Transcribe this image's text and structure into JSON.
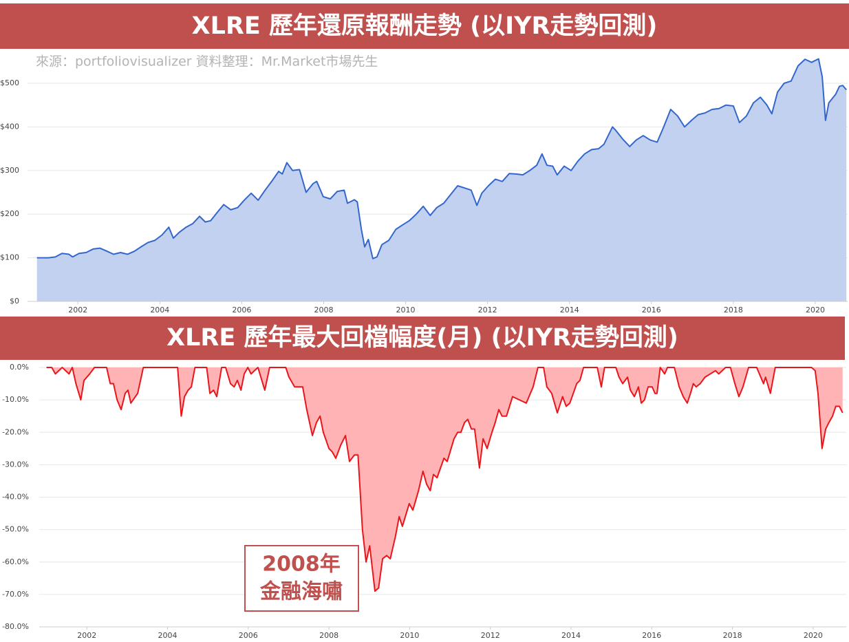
{
  "chart_data": [
    {
      "type": "area",
      "title": "XLRE 歷年還原報酬走勢 (以IYR走勢回測)",
      "subtitle": "來源：portfoliovisualizer 資料整理：Mr.Market市場先生",
      "color": "#3366cc",
      "fill_color": "#c2d1f0",
      "grid": true,
      "xlim": [
        2000.77,
        2020.79
      ],
      "xticks": [
        2002,
        2004,
        2006,
        2008,
        2010,
        2012,
        2014,
        2016,
        2018,
        2020
      ],
      "ylim": [
        0,
        575
      ],
      "yticks": [
        {
          "value": 0,
          "label": "$0"
        },
        {
          "value": 100,
          "label": "$100"
        },
        {
          "value": 200,
          "label": "$200"
        },
        {
          "value": 300,
          "label": "$300"
        },
        {
          "value": 400,
          "label": "$400"
        },
        {
          "value": 500,
          "label": "$500"
        }
      ],
      "x": [
        2001.0,
        2001.28,
        2001.45,
        2001.61,
        2001.78,
        2001.87,
        2002.03,
        2002.2,
        2002.37,
        2002.54,
        2002.71,
        2002.87,
        2003.04,
        2003.21,
        2003.38,
        2003.54,
        2003.71,
        2003.88,
        2004.05,
        2004.22,
        2004.33,
        2004.47,
        2004.64,
        2004.8,
        2004.97,
        2005.11,
        2005.24,
        2005.41,
        2005.56,
        2005.73,
        2005.9,
        2006.06,
        2006.23,
        2006.4,
        2006.57,
        2006.73,
        2006.9,
        2006.99,
        2007.1,
        2007.24,
        2007.41,
        2007.57,
        2007.74,
        2007.83,
        2007.99,
        2008.16,
        2008.33,
        2008.5,
        2008.58,
        2008.75,
        2008.82,
        2008.92,
        2009.0,
        2009.09,
        2009.2,
        2009.3,
        2009.42,
        2009.59,
        2009.76,
        2009.92,
        2010.09,
        2010.26,
        2010.43,
        2010.6,
        2010.76,
        2010.93,
        2011.1,
        2011.27,
        2011.44,
        2011.6,
        2011.74,
        2011.86,
        2012.02,
        2012.19,
        2012.36,
        2012.53,
        2012.7,
        2012.86,
        2013.03,
        2013.2,
        2013.33,
        2013.45,
        2013.59,
        2013.7,
        2013.87,
        2014.04,
        2014.21,
        2014.37,
        2014.54,
        2014.71,
        2014.84,
        2015.05,
        2015.13,
        2015.3,
        2015.47,
        2015.63,
        2015.8,
        2015.97,
        2016.14,
        2016.3,
        2016.47,
        2016.64,
        2016.81,
        2016.98,
        2017.14,
        2017.31,
        2017.48,
        2017.65,
        2017.82,
        2018.0,
        2018.15,
        2018.32,
        2018.49,
        2018.66,
        2018.82,
        2018.94,
        2019.08,
        2019.24,
        2019.41,
        2019.58,
        2019.75,
        2019.91,
        2020.08,
        2020.17,
        2020.25,
        2020.33,
        2020.5,
        2020.59,
        2020.67,
        2020.76
      ],
      "values": [
        100,
        100,
        102,
        110,
        108,
        102,
        110,
        112,
        120,
        122,
        115,
        108,
        112,
        108,
        115,
        125,
        135,
        140,
        152,
        170,
        145,
        158,
        170,
        178,
        195,
        182,
        185,
        205,
        222,
        210,
        215,
        232,
        248,
        232,
        255,
        275,
        298,
        292,
        318,
        300,
        302,
        250,
        270,
        275,
        240,
        235,
        252,
        255,
        225,
        233,
        228,
        165,
        125,
        142,
        98,
        102,
        130,
        140,
        165,
        175,
        185,
        200,
        218,
        197,
        215,
        225,
        245,
        265,
        260,
        255,
        220,
        248,
        265,
        280,
        275,
        293,
        292,
        290,
        300,
        312,
        338,
        312,
        310,
        290,
        310,
        300,
        322,
        338,
        348,
        350,
        360,
        400,
        392,
        372,
        355,
        370,
        380,
        370,
        365,
        400,
        440,
        425,
        400,
        415,
        428,
        432,
        440,
        442,
        450,
        448,
        410,
        425,
        455,
        468,
        450,
        430,
        480,
        500,
        505,
        540,
        555,
        548,
        556,
        515,
        415,
        455,
        475,
        493,
        495,
        485
      ]
    },
    {
      "type": "area",
      "title": "XLRE 歷年最大回檔幅度(月) (以IYR走勢回測)",
      "annotation": [
        "2008年",
        "金融海嘯"
      ],
      "color": "#e8161b",
      "fill_color": "#ffb3b5",
      "grid": true,
      "xlim": [
        2000.82,
        2020.82
      ],
      "xticks": [
        2002,
        2004,
        2006,
        2008,
        2010,
        2012,
        2014,
        2016,
        2018,
        2020
      ],
      "ylim": [
        -80,
        0
      ],
      "yticks": [
        {
          "value": 0,
          "label": "0.0%"
        },
        {
          "value": -10,
          "label": "-10.0%"
        },
        {
          "value": -20,
          "label": "-20.0%"
        },
        {
          "value": -30,
          "label": "-30.0%"
        },
        {
          "value": -40,
          "label": "-40.0%"
        },
        {
          "value": -50,
          "label": "-50.0%"
        },
        {
          "value": -60,
          "label": "-60.0%"
        },
        {
          "value": -70,
          "label": "-70.0%"
        },
        {
          "value": -80,
          "label": "-80.0%"
        }
      ],
      "x": [
        2001.0,
        2001.13,
        2001.22,
        2001.39,
        2001.56,
        2001.64,
        2001.73,
        2001.85,
        2001.93,
        2002.07,
        2002.19,
        2002.49,
        2002.58,
        2002.66,
        2002.75,
        2002.85,
        2002.95,
        2003.02,
        2003.09,
        2003.26,
        2003.4,
        2004.25,
        2004.34,
        2004.42,
        2004.51,
        2004.59,
        2004.68,
        2004.97,
        2005.05,
        2005.14,
        2005.22,
        2005.34,
        2005.44,
        2005.56,
        2005.65,
        2005.73,
        2005.82,
        2005.9,
        2005.99,
        2006.07,
        2006.24,
        2006.41,
        2006.53,
        2006.93,
        2007.01,
        2007.15,
        2007.35,
        2007.45,
        2007.59,
        2007.69,
        2007.78,
        2007.86,
        2008.0,
        2008.08,
        2008.17,
        2008.29,
        2008.41,
        2008.51,
        2008.63,
        2008.72,
        2008.83,
        2008.92,
        2009.01,
        2009.14,
        2009.23,
        2009.33,
        2009.43,
        2009.52,
        2009.65,
        2009.74,
        2009.82,
        2009.99,
        2010.08,
        2010.22,
        2010.33,
        2010.42,
        2010.51,
        2010.59,
        2010.68,
        2010.85,
        2010.93,
        2011.1,
        2011.19,
        2011.27,
        2011.36,
        2011.44,
        2011.53,
        2011.61,
        2011.73,
        2011.82,
        2011.92,
        2012.04,
        2012.12,
        2012.21,
        2012.29,
        2012.4,
        2012.55,
        2012.72,
        2012.89,
        2013.06,
        2013.18,
        2013.32,
        2013.4,
        2013.52,
        2013.66,
        2013.79,
        2013.88,
        2013.97,
        2014.14,
        2014.22,
        2014.31,
        2014.65,
        2014.75,
        2014.83,
        2015.11,
        2015.19,
        2015.28,
        2015.4,
        2015.47,
        2015.57,
        2015.67,
        2015.74,
        2015.82,
        2015.91,
        2016.01,
        2016.08,
        2016.13,
        2016.21,
        2016.32,
        2016.39,
        2016.56,
        2016.68,
        2016.78,
        2016.88,
        2016.96,
        2017.03,
        2017.1,
        2017.2,
        2017.32,
        2017.58,
        2017.66,
        2017.83,
        2017.95,
        2018.06,
        2018.16,
        2018.26,
        2018.4,
        2018.6,
        2018.77,
        2018.82,
        2018.94,
        2019.06,
        2019.79,
        2019.96,
        2020.05,
        2020.12,
        2020.22,
        2020.31,
        2020.39,
        2020.48,
        2020.56,
        2020.65,
        2020.73
      ],
      "values": [
        0,
        0,
        -2,
        0,
        -2,
        0,
        -5,
        -10,
        -4,
        -2,
        0,
        0,
        -5,
        -5,
        -10,
        -13,
        -8,
        -7,
        -11,
        -8,
        0,
        0,
        -15,
        -9,
        -7,
        -6,
        0,
        0,
        -8,
        -7,
        -9,
        0,
        0,
        -5,
        -6,
        -4,
        -7,
        -2,
        0,
        -2,
        0,
        -7,
        0,
        0,
        -3,
        -6,
        -6,
        -13,
        -21,
        -17,
        -15,
        -20,
        -25,
        -26,
        -28,
        -24,
        -21,
        -29,
        -27,
        -27,
        -50,
        -60,
        -55,
        -69,
        -68,
        -59,
        -58,
        -59,
        -52,
        -46,
        -49,
        -42,
        -44,
        -38,
        -32,
        -36,
        -38,
        -33,
        -34,
        -28,
        -29,
        -22,
        -20,
        -20,
        -17,
        -16,
        -19,
        -19,
        -31,
        -22,
        -25,
        -20,
        -17,
        -13,
        -15,
        -15,
        -9,
        -10,
        -11,
        -6,
        0,
        0,
        -6,
        -8,
        -14,
        -9,
        -12,
        -11,
        -5,
        -4,
        0,
        0,
        -6,
        0,
        0,
        -3,
        -5,
        -3,
        -7,
        -9,
        -6,
        -11,
        -10,
        -6,
        -6,
        -8,
        -8,
        0,
        -2,
        0,
        0,
        -6,
        -9,
        -11,
        -8,
        -5,
        -6,
        -5,
        -3,
        -1,
        -2,
        0,
        0,
        -5,
        -9,
        -6,
        0,
        0,
        -5,
        -3,
        -8,
        0,
        0,
        0,
        -1,
        -8,
        -25,
        -19,
        -17,
        -15,
        -12,
        -12,
        -14
      ]
    }
  ]
}
